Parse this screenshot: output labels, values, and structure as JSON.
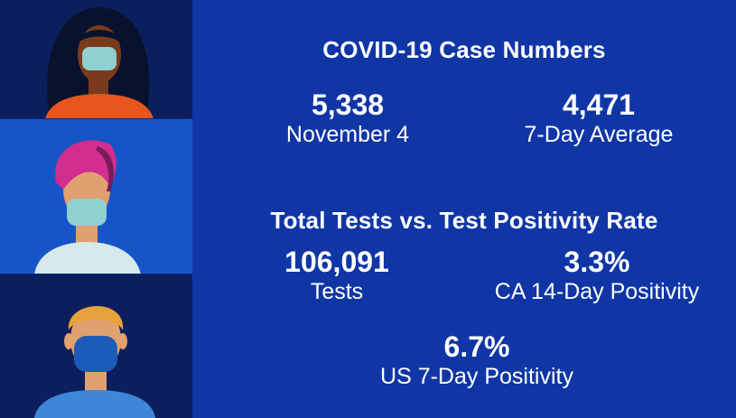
{
  "colors": {
    "background": "#1036a6",
    "panel_dark": "#0b1f5c",
    "panel_light": "#1555c8",
    "text": "#ffffff",
    "skin_dark": "#7a3a1c",
    "skin_light": "#e0a070",
    "shirt_orange": "#e8561e",
    "hair_magenta": "#d12e8f",
    "mask_teal": "#8fd0d0",
    "mask_blue": "#1d5bb8",
    "hair_orange": "#e6a23a"
  },
  "illustrations": [
    {
      "name": "person-1",
      "icon": "woman-with-mask-icon"
    },
    {
      "name": "person-2",
      "icon": "person-with-mask-icon"
    },
    {
      "name": "person-3",
      "icon": "man-with-mask-icon"
    }
  ],
  "cases": {
    "heading": "COVID-19 Case Numbers",
    "daily": {
      "value": "5,338",
      "label": "November 4"
    },
    "average": {
      "value": "4,471",
      "label": "7-Day Average"
    }
  },
  "tests": {
    "heading": "Total Tests vs. Test Positivity Rate",
    "total": {
      "value": "106,091",
      "label": "Tests"
    },
    "ca_positivity": {
      "value": "3.3%",
      "label": "CA 14-Day Positivity"
    },
    "us_positivity": {
      "value": "6.7%",
      "label": "US 7-Day Positivity"
    }
  }
}
